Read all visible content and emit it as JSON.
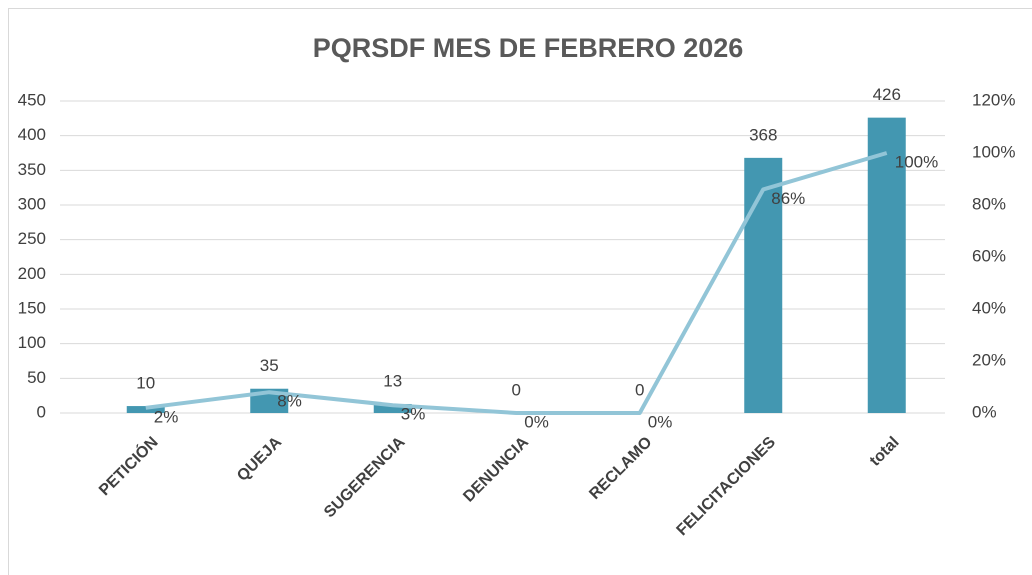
{
  "chart_data": {
    "type": "bar",
    "title": "PQRSDF MES DE FEBRERO 2026",
    "categories": [
      "PETICIÓN",
      "QUEJA",
      "SUGERENCIA",
      "DENUNCIA",
      "RECLAMO",
      "FELICITACIONES",
      "total"
    ],
    "series": [
      {
        "type": "bar",
        "color": "#4397b1",
        "values": [
          10,
          35,
          13,
          0,
          0,
          368,
          426
        ]
      },
      {
        "type": "line",
        "axis": "y2",
        "color": "#92c5d7",
        "values": [
          2,
          8,
          3,
          0,
          0,
          86,
          100
        ],
        "value_labels": [
          "2%",
          "8%",
          "3%",
          "0%",
          "0%",
          "86%",
          "100%"
        ]
      }
    ],
    "ylim": [
      0,
      450
    ],
    "yticks": [
      0,
      50,
      100,
      150,
      200,
      250,
      300,
      350,
      400,
      450
    ],
    "y2lim": [
      0,
      120
    ],
    "y2ticks": [
      {
        "value": 0,
        "label": "0%"
      },
      {
        "value": 20,
        "label": "20%"
      },
      {
        "value": 40,
        "label": "40%"
      },
      {
        "value": 60,
        "label": "60%"
      },
      {
        "value": 80,
        "label": "80%"
      },
      {
        "value": 100,
        "label": "100%"
      },
      {
        "value": 120,
        "label": "120%"
      }
    ],
    "grid": true
  }
}
